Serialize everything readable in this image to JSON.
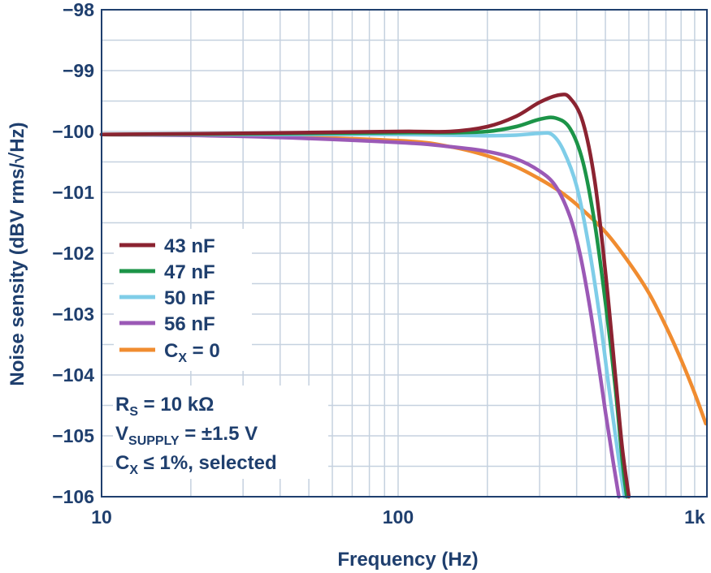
{
  "chart_data": {
    "type": "line",
    "xlabel": "Frequency (Hz)",
    "ylabel": "Noise sensity (dBV rms/√Hz)",
    "xscale": "log",
    "xlim": [
      10,
      1100
    ],
    "ylim": [
      -106,
      -98
    ],
    "xticks": [
      {
        "value": 10,
        "label": "10"
      },
      {
        "value": 100,
        "label": "100"
      },
      {
        "value": 1000,
        "label": "1k"
      }
    ],
    "yticks": [
      {
        "value": -98,
        "label": "−98"
      },
      {
        "value": -99,
        "label": "−99"
      },
      {
        "value": -100,
        "label": "−100"
      },
      {
        "value": -101,
        "label": "−101"
      },
      {
        "value": -102,
        "label": "−102"
      },
      {
        "value": -103,
        "label": "−103"
      },
      {
        "value": -104,
        "label": "−104"
      },
      {
        "value": -105,
        "label": "−105"
      },
      {
        "value": -106,
        "label": "−106"
      }
    ],
    "grid": true,
    "legend_position": "left",
    "series": [
      {
        "name": "43 nF",
        "color": "#8b2331",
        "x": [
          10,
          30,
          100,
          150,
          200,
          250,
          300,
          350,
          380,
          420,
          460,
          500,
          540,
          570,
          600
        ],
        "y": [
          -100.05,
          -100.03,
          -100.0,
          -100.0,
          -99.92,
          -99.75,
          -99.52,
          -99.4,
          -99.45,
          -99.85,
          -100.8,
          -102.3,
          -104.0,
          -105.2,
          -106.0
        ]
      },
      {
        "name": "47 nF",
        "color": "#1c9448",
        "x": [
          10,
          30,
          100,
          150,
          200,
          250,
          300,
          340,
          380,
          420,
          460,
          500,
          540,
          570,
          590
        ],
        "y": [
          -100.05,
          -100.04,
          -100.02,
          -100.02,
          -100.0,
          -99.92,
          -99.8,
          -99.78,
          -99.95,
          -100.5,
          -101.5,
          -102.8,
          -104.2,
          -105.4,
          -106.0
        ]
      },
      {
        "name": "50 nF",
        "color": "#7fcde8",
        "x": [
          10,
          30,
          100,
          150,
          200,
          250,
          300,
          330,
          360,
          400,
          440,
          480,
          520,
          555,
          580
        ],
        "y": [
          -100.05,
          -100.05,
          -100.05,
          -100.06,
          -100.07,
          -100.06,
          -100.03,
          -100.05,
          -100.3,
          -100.9,
          -101.9,
          -103.1,
          -104.4,
          -105.4,
          -106.0
        ]
      },
      {
        "name": "56 nF",
        "color": "#9b59b6",
        "x": [
          10,
          30,
          100,
          150,
          200,
          250,
          300,
          340,
          380,
          410,
          440,
          470,
          500,
          530,
          555
        ],
        "y": [
          -100.05,
          -100.08,
          -100.18,
          -100.25,
          -100.33,
          -100.45,
          -100.65,
          -100.9,
          -101.4,
          -102.0,
          -102.8,
          -103.7,
          -104.6,
          -105.4,
          -106.0
        ]
      },
      {
        "name": "C_X = 0",
        "color": "#f08c30",
        "x": [
          10,
          30,
          100,
          150,
          200,
          250,
          300,
          350,
          400,
          500,
          600,
          700,
          800,
          900,
          1000,
          1090
        ],
        "y": [
          -100.05,
          -100.07,
          -100.15,
          -100.25,
          -100.4,
          -100.58,
          -100.78,
          -100.98,
          -101.2,
          -101.65,
          -102.15,
          -102.65,
          -103.2,
          -103.75,
          -104.3,
          -104.8
        ]
      }
    ],
    "annotation_lines": [
      {
        "main": "R",
        "sub": "S",
        "rest": " = 10 kΩ"
      },
      {
        "main": "V",
        "sub": "SUPPLY",
        "rest": " = ±1.5 V"
      },
      {
        "main": "C",
        "sub": "X",
        "rest": " ≤ 1%, selected"
      }
    ],
    "legend_labels": [
      {
        "main": "43 nF",
        "sub": "",
        "rest": ""
      },
      {
        "main": "47 nF",
        "sub": "",
        "rest": ""
      },
      {
        "main": "50 nF",
        "sub": "",
        "rest": ""
      },
      {
        "main": "56 nF",
        "sub": "",
        "rest": ""
      },
      {
        "main": "C",
        "sub": "X",
        "rest": " = 0"
      }
    ],
    "colors": {
      "axis_text": "#1f3f6e",
      "grid": "#c5d1df",
      "frame": "#1f3f6e"
    }
  }
}
